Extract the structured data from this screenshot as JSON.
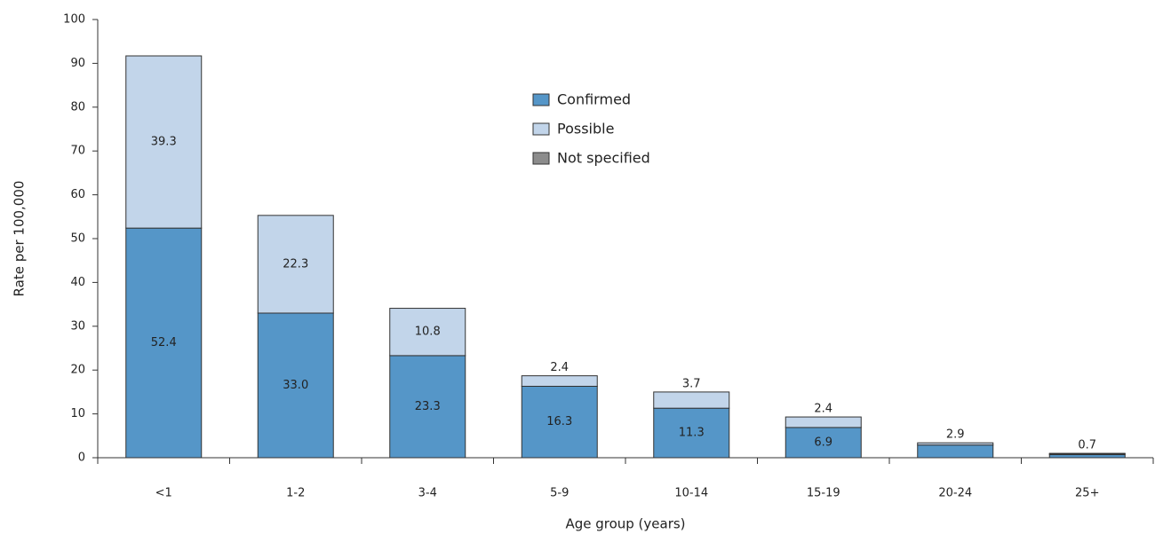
{
  "chart_data": {
    "type": "stacked_bar",
    "x_label": "Age group (years)",
    "y_label": "Rate per 100,000",
    "categories": [
      "<1",
      "1-2",
      "3-4",
      "5-9",
      "10-14",
      "15-19",
      "20-24",
      "25+"
    ],
    "series": [
      {
        "name": "Confirmed",
        "color": "#5596c8",
        "values": [
          52.4,
          33.0,
          23.3,
          16.3,
          11.3,
          6.9,
          2.9,
          0.7
        ],
        "value_labels": [
          "52.4",
          "33.0",
          "23.3",
          "16.3",
          "11.3",
          "6.9",
          "2.9",
          "0.7"
        ]
      },
      {
        "name": "Possible",
        "color": "#c2d5ea",
        "values": [
          39.3,
          22.3,
          10.8,
          2.4,
          3.7,
          2.4,
          0.5,
          0.2
        ],
        "value_labels": [
          "39.3",
          "22.3",
          "10.8",
          "2.4",
          "3.7",
          "2.4",
          null,
          null
        ]
      },
      {
        "name": "Not specified",
        "color": "#8c8c8c",
        "values": [
          0,
          0,
          0,
          0,
          0,
          0,
          0,
          0.1
        ]
      }
    ],
    "ylim": [
      0,
      100
    ],
    "yticks": [
      0,
      10,
      20,
      30,
      40,
      50,
      60,
      70,
      80,
      90,
      100
    ],
    "grid": false
  }
}
